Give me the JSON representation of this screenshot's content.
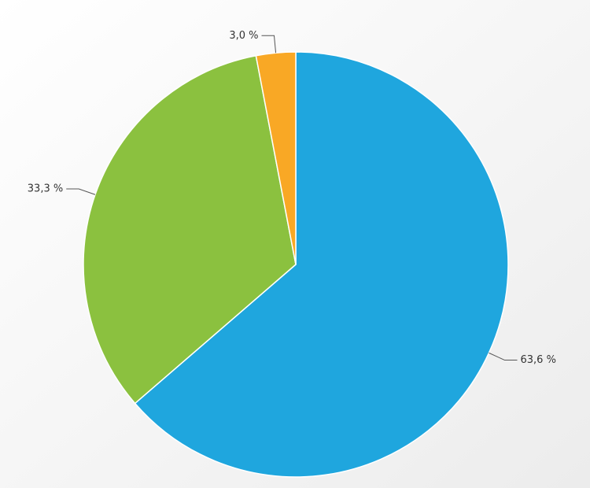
{
  "chart_data": {
    "type": "pie",
    "categories": [
      null,
      null,
      null
    ],
    "values": [
      63.6,
      33.3,
      3.0
    ],
    "value_labels": [
      "63,6 %",
      "33,3 %",
      "3,0 %"
    ],
    "colors": [
      "#1fa6de",
      "#8bc13f",
      "#f9a825"
    ]
  }
}
